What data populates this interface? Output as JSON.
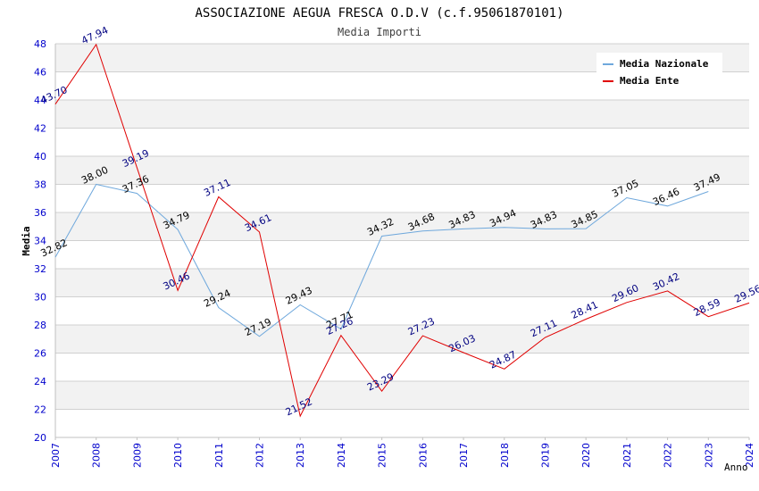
{
  "chart_data": {
    "type": "line",
    "title": "ASSOCIAZIONE AEGUA FRESCA O.D.V (c.f.95061870101)",
    "subtitle": "Media Importi",
    "xlabel": "Anno",
    "ylabel": "Media",
    "ylim": [
      20,
      48
    ],
    "yticks": [
      20,
      22,
      24,
      26,
      28,
      30,
      32,
      34,
      36,
      38,
      40,
      42,
      44,
      46,
      48
    ],
    "x": [
      "2007",
      "2008",
      "2009",
      "2010",
      "2011",
      "2012",
      "2013",
      "2014",
      "2015",
      "2016",
      "2017",
      "2018",
      "2019",
      "2020",
      "2021",
      "2022",
      "2023",
      "2024"
    ],
    "grid": true,
    "legend_position": "top-right",
    "series": [
      {
        "name": "Media Nazionale",
        "color": "#6fa8dc",
        "label_color": "#000000",
        "values": [
          32.82,
          38.0,
          37.36,
          34.79,
          29.24,
          27.19,
          29.43,
          27.71,
          34.32,
          34.68,
          34.83,
          34.94,
          34.83,
          34.85,
          37.05,
          36.46,
          37.49,
          null
        ],
        "labels": [
          "32.82",
          "38.00",
          "37.36",
          "34.79",
          "29.24",
          "27.19",
          "29.43",
          "27.71",
          "34.32",
          "34.68",
          "34.83",
          "34.94",
          "34.83",
          "34.85",
          "37.05",
          "36.46",
          "37.49",
          null
        ]
      },
      {
        "name": "Media Ente",
        "color": "#e00000",
        "label_color": "#000080",
        "values": [
          43.7,
          47.94,
          39.19,
          30.46,
          37.11,
          34.61,
          21.52,
          27.26,
          23.29,
          27.23,
          26.03,
          24.87,
          27.11,
          28.41,
          29.6,
          30.42,
          28.59,
          29.56
        ],
        "labels": [
          "43.70",
          "47.94",
          "39.19",
          "30.46",
          "37.11",
          "34.61",
          "21.52",
          "27.26",
          "23.29",
          "27.23",
          "26.03",
          "24.87",
          "27.11",
          "28.41",
          "29.60",
          "30.42",
          "28.59",
          "29.56"
        ]
      }
    ]
  }
}
